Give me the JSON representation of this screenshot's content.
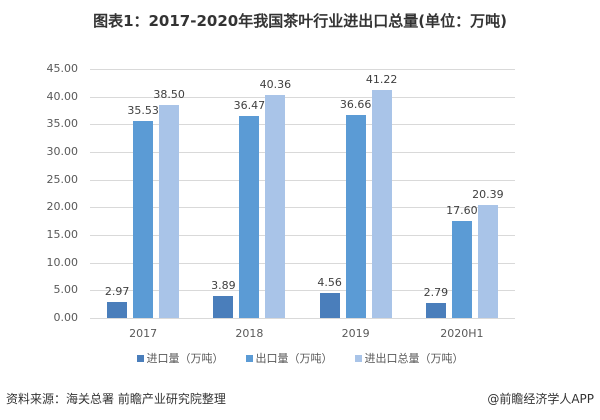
{
  "title": "图表1：2017-2020年我国茶叶行业进出口总量(单位：万吨)",
  "chart_data": {
    "type": "bar",
    "title": "图表1：2017-2020年我国茶叶行业进出口总量(单位：万吨)",
    "categories": [
      "2017",
      "2018",
      "2019",
      "2020H1"
    ],
    "series": [
      {
        "name": "进口量（万吨）",
        "color": "#4a7ebb",
        "values": [
          2.97,
          3.89,
          4.56,
          2.79
        ],
        "labels": [
          "2.97",
          "3.89",
          "4.56",
          "2.79"
        ]
      },
      {
        "name": "出口量（万吨）",
        "color": "#5b9bd5",
        "values": [
          35.53,
          36.47,
          36.66,
          17.6
        ],
        "labels": [
          "35.53",
          "36.47",
          "36.66",
          "17.60"
        ]
      },
      {
        "name": "进出口总量（万吨）",
        "color": "#a9c4e8",
        "values": [
          38.5,
          40.36,
          41.22,
          20.39
        ],
        "labels": [
          "38.50",
          "40.36",
          "41.22",
          "20.39"
        ]
      }
    ],
    "yticks": [
      "0.00",
      "5.00",
      "10.00",
      "15.00",
      "20.00",
      "25.00",
      "30.00",
      "35.00",
      "40.00",
      "45.00"
    ],
    "ylim": [
      0,
      45
    ],
    "xlabel": "",
    "ylabel": "",
    "grid": true,
    "legend_position": "bottom"
  },
  "footer": {
    "source": "资料来源：海关总署 前瞻产业研究院整理",
    "credit": "@前瞻经济学人APP"
  }
}
